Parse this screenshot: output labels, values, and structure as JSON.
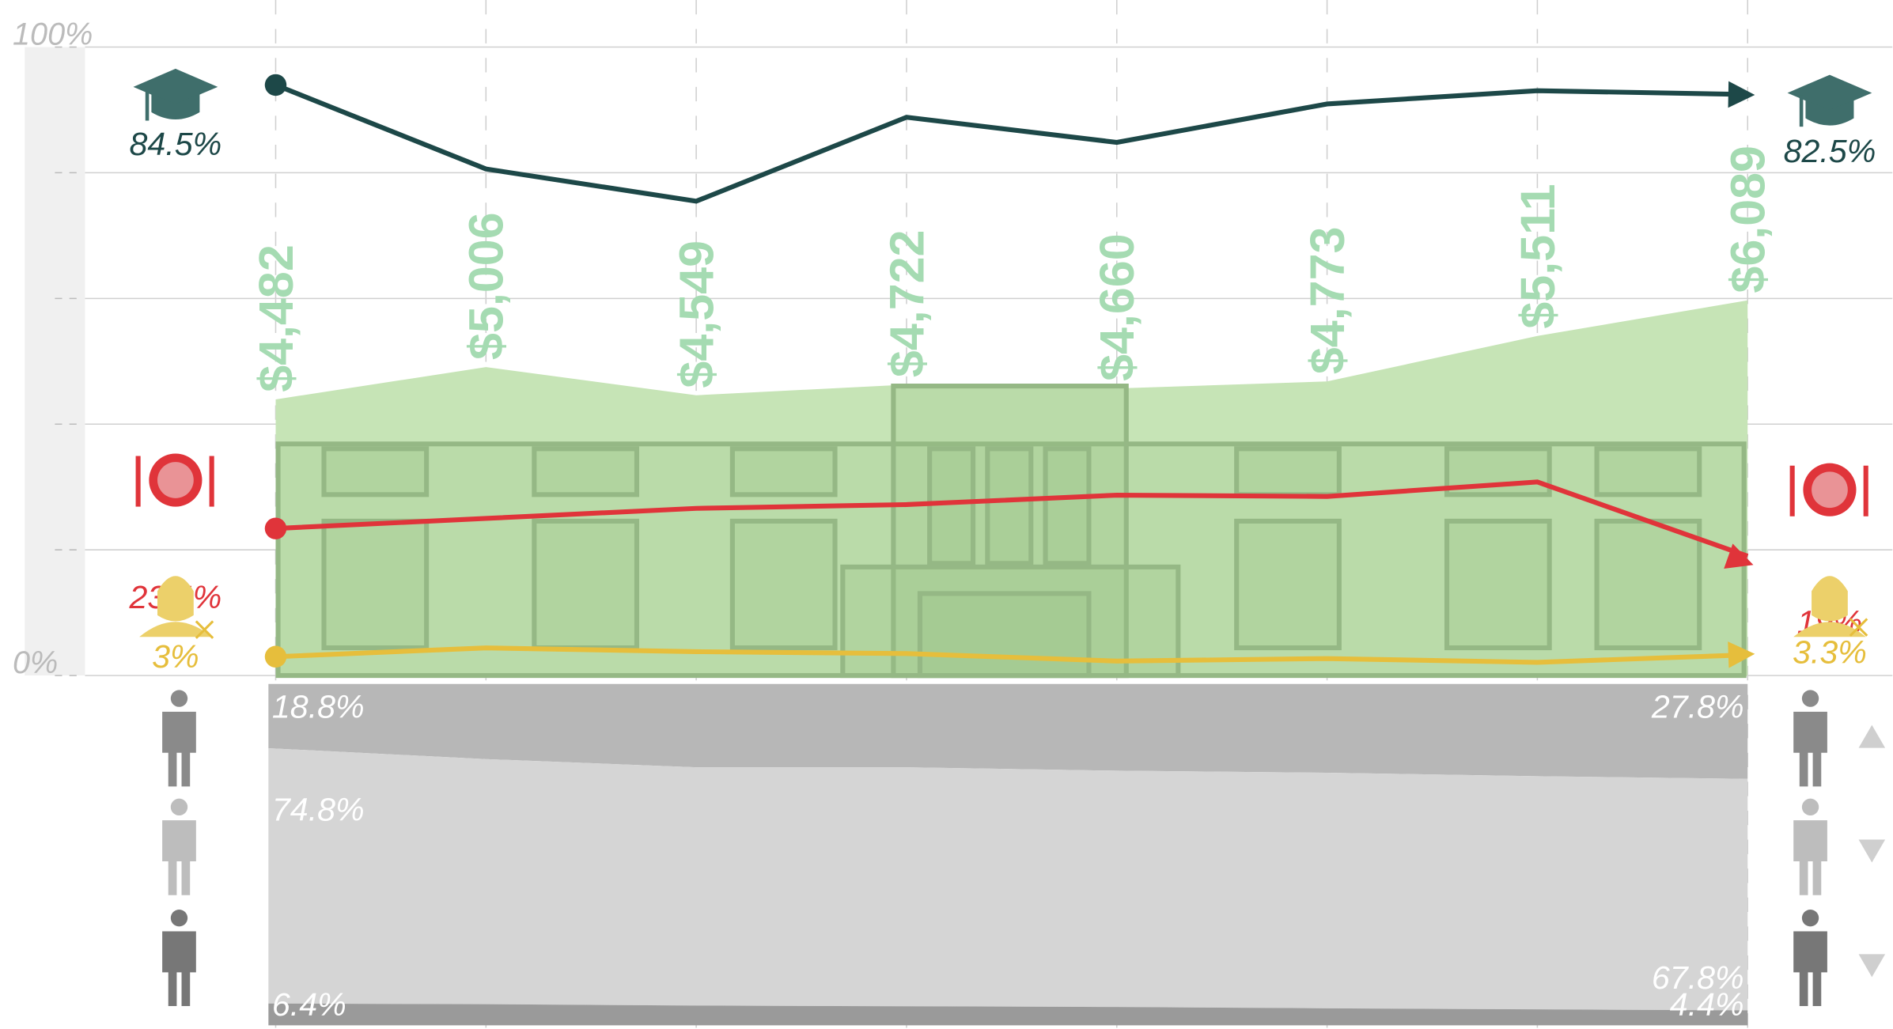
{
  "chart_data": [
    {
      "type": "line",
      "categories": [
        null,
        null,
        null,
        null,
        null,
        null,
        null,
        null
      ],
      "ylim": [
        0,
        100
      ],
      "yticks": [
        {
          "value": 0,
          "label": "0%"
        },
        20,
        40,
        60,
        80,
        {
          "value": 100,
          "label": "100%"
        }
      ],
      "y2lim": [
        -40,
        92.5
      ],
      "y3lim": [
        0,
        10200
      ],
      "grid": true,
      "series": [
        {
          "type": "area",
          "axis": "y3",
          "color": "#c6e4b6",
          "values": [
            4482,
            5006,
            4549,
            4722,
            4660,
            4773,
            5511,
            6089
          ],
          "value_labels": [
            "$4,482",
            "$5,006",
            "$4,549",
            "$4,722",
            "$4,660",
            "$4,773",
            "$5,511",
            "$6,089"
          ]
        },
        {
          "type": "line",
          "axis": "y2",
          "color": "#1d4848",
          "values": [
            84.5,
            66.8,
            60.0,
            77.7,
            72.4,
            80.5,
            83.3,
            82.5
          ],
          "value_labels": [
            "84.5%",
            null,
            null,
            null,
            null,
            null,
            null,
            "82.5%"
          ]
        },
        {
          "type": "line",
          "axis": "y",
          "color": "#e0343a",
          "values": [
            23.4,
            25.0,
            26.6,
            27.2,
            28.7,
            28.5,
            30.8,
            19
          ],
          "value_labels": [
            "23.4%",
            null,
            null,
            null,
            null,
            null,
            null,
            "19%"
          ]
        },
        {
          "type": "line",
          "axis": "y",
          "color": "#e6be3c",
          "values": [
            3,
            4.4,
            3.8,
            3.5,
            2.3,
            2.7,
            2.1,
            3.3
          ],
          "value_labels": [
            "3%",
            null,
            null,
            null,
            null,
            null,
            null,
            "3.3%"
          ]
        }
      ]
    },
    {
      "type": "stacked_area",
      "categories": [
        null,
        null,
        null,
        null,
        null,
        null,
        null,
        null
      ],
      "ylim": [
        0,
        100
      ],
      "series": [
        {
          "color": "#b7b7b7",
          "values": [
            18.8,
            22,
            24.4,
            24.4,
            25.4,
            26,
            27,
            27.8
          ],
          "value_labels": [
            "18.8%",
            null,
            null,
            null,
            null,
            null,
            null,
            "27.8%"
          ]
        },
        {
          "color": "#d5d5d5",
          "values": [
            74.8,
            71.8,
            69.8,
            70.0,
            69.2,
            69.0,
            68.3,
            67.8
          ],
          "value_labels": [
            "74.8%",
            null,
            null,
            null,
            null,
            null,
            null,
            "67.8%"
          ]
        },
        {
          "color": "#9a9a9a",
          "values": [
            6.4,
            6.2,
            5.8,
            5.6,
            5.4,
            5,
            4.7,
            4.4
          ],
          "value_labels": [
            "6.4%",
            null,
            null,
            null,
            null,
            null,
            null,
            "4.4%"
          ]
        }
      ]
    }
  ]
}
